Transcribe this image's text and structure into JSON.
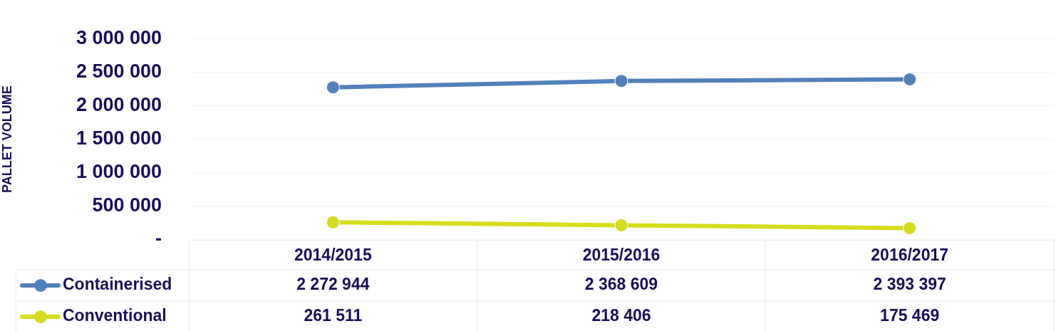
{
  "chart_data": {
    "type": "line",
    "ylabel": "PALLET VOLUME",
    "categories": [
      "2014/2015",
      "2015/2016",
      "2016/2017"
    ],
    "series": [
      {
        "name": "Containerised",
        "color": "#4f81bd",
        "values": [
          2272944,
          2368609,
          2393397
        ]
      },
      {
        "name": "Conventional",
        "color": "#d6dc1e",
        "values": [
          261511,
          218406,
          175469
        ]
      }
    ],
    "ylim": [
      0,
      3000000
    ],
    "yticks": [
      {
        "value": 0,
        "label": "-"
      },
      {
        "value": 500000,
        "label": "500 000"
      },
      {
        "value": 1000000,
        "label": "1 000 000"
      },
      {
        "value": 1500000,
        "label": "1 500 000"
      },
      {
        "value": 2000000,
        "label": "2 000 000"
      },
      {
        "value": 2500000,
        "label": "2 500 000"
      },
      {
        "value": 3000000,
        "label": "3 000 000"
      }
    ],
    "grid": "y",
    "legend": "bottom",
    "marker": "circle",
    "line_style": "solid",
    "data_labels": true
  }
}
